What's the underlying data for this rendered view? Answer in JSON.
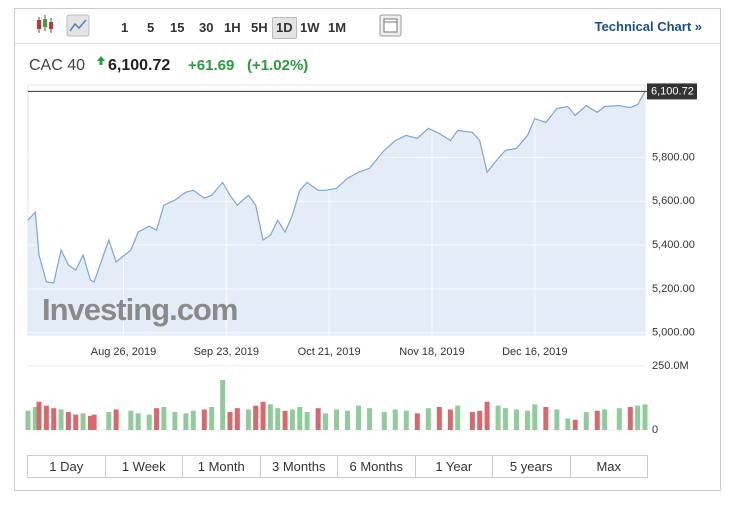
{
  "toolbar": {
    "intervals": [
      "1",
      "5",
      "15",
      "30",
      "1H",
      "5H",
      "1D",
      "1W",
      "1M"
    ],
    "active": "1D",
    "link": "Technical Chart »"
  },
  "header": {
    "name": "CAC 40",
    "price": "6,100.72",
    "change": "+61.69",
    "change_pct": "(+1.02%)"
  },
  "chart_data": [
    {
      "type": "area",
      "watermark": "Investing.com",
      "color": "#7ea6d0",
      "fill": "#e4edf7",
      "grid": true,
      "x": [
        "2019-07-31",
        "2019-08-02",
        "2019-08-03",
        "2019-08-05",
        "2019-08-07",
        "2019-08-09",
        "2019-08-11",
        "2019-08-13",
        "2019-08-15",
        "2019-08-17",
        "2019-08-18",
        "2019-08-22",
        "2019-08-24",
        "2019-08-28",
        "2019-08-30",
        "2019-09-02",
        "2019-09-04",
        "2019-09-06",
        "2019-09-09",
        "2019-09-12",
        "2019-09-14",
        "2019-09-17",
        "2019-09-19",
        "2019-09-22",
        "2019-09-24",
        "2019-09-26",
        "2019-09-29",
        "2019-10-01",
        "2019-10-03",
        "2019-10-05",
        "2019-10-07",
        "2019-10-09",
        "2019-10-11",
        "2019-10-13",
        "2019-10-15",
        "2019-10-18",
        "2019-10-20",
        "2019-10-23",
        "2019-10-26",
        "2019-10-29",
        "2019-11-01",
        "2019-11-05",
        "2019-11-08",
        "2019-11-11",
        "2019-11-14",
        "2019-11-17",
        "2019-11-20",
        "2019-11-23",
        "2019-11-25",
        "2019-11-29",
        "2019-12-01",
        "2019-12-03",
        "2019-12-06",
        "2019-12-08",
        "2019-12-11",
        "2019-12-14",
        "2019-12-16",
        "2019-12-19",
        "2019-12-22",
        "2019-12-25",
        "2019-12-27",
        "2019-12-30",
        "2020-01-02",
        "2020-01-04",
        "2020-01-08",
        "2020-01-11",
        "2020-01-13",
        "2020-01-15"
      ],
      "values": [
        5514,
        5550,
        5355,
        5232,
        5227,
        5377,
        5309,
        5286,
        5355,
        5241,
        5232,
        5423,
        5323,
        5377,
        5459,
        5486,
        5468,
        5582,
        5605,
        5641,
        5650,
        5614,
        5627,
        5686,
        5627,
        5582,
        5627,
        5582,
        5423,
        5445,
        5514,
        5459,
        5536,
        5650,
        5686,
        5650,
        5650,
        5659,
        5705,
        5732,
        5750,
        5832,
        5877,
        5900,
        5886,
        5932,
        5909,
        5877,
        5923,
        5914,
        5877,
        5732,
        5795,
        5832,
        5841,
        5900,
        5977,
        5959,
        6023,
        6032,
        5991,
        6036,
        6005,
        6032,
        6036,
        6027,
        6041,
        6100.72
      ],
      "xlim": [
        "2019-07-31",
        "2020-01-15"
      ],
      "xticks": [
        {
          "value": "2019-08-26",
          "label": "Aug 26, 2019"
        },
        {
          "value": "2019-09-23",
          "label": "Sep 23, 2019"
        },
        {
          "value": "2019-10-21",
          "label": "Oct 21, 2019"
        },
        {
          "value": "2019-11-18",
          "label": "Nov 18, 2019"
        },
        {
          "value": "2019-12-16",
          "label": "Dec 16, 2019"
        }
      ],
      "ylim": [
        4990,
        6130
      ],
      "yticks": [
        {
          "value": 5000,
          "label": "5,000.00"
        },
        {
          "value": 5200,
          "label": "5,200.00"
        },
        {
          "value": 5400,
          "label": "5,400.00"
        },
        {
          "value": 5600,
          "label": "5,600.00"
        },
        {
          "value": 5800,
          "label": "5,800.00"
        }
      ]
    },
    {
      "type": "bar",
      "up_color": "#8fcc9a",
      "down_color": "#d9686d",
      "values": [
        75,
        90,
        110,
        95,
        85,
        80,
        70,
        60,
        65,
        55,
        60,
        70,
        80,
        75,
        65,
        60,
        85,
        90,
        70,
        65,
        75,
        80,
        90,
        195,
        70,
        85,
        80,
        95,
        110,
        100,
        85,
        75,
        80,
        90,
        70,
        85,
        65,
        80,
        75,
        95,
        85,
        70,
        80,
        75,
        65,
        85,
        90,
        80,
        95,
        70,
        75,
        110,
        95,
        85,
        80,
        75,
        100,
        90,
        80,
        45,
        40,
        70,
        75,
        80,
        85,
        90,
        95,
        100
      ],
      "ylim": [
        0,
        265
      ],
      "yticks": [
        0,
        {
          "value": 250,
          "label": "250.0M"
        }
      ]
    }
  ],
  "ranges": [
    "1 Day",
    "1 Week",
    "1 Month",
    "3 Months",
    "6 Months",
    "1 Year",
    "5 years",
    "Max"
  ]
}
